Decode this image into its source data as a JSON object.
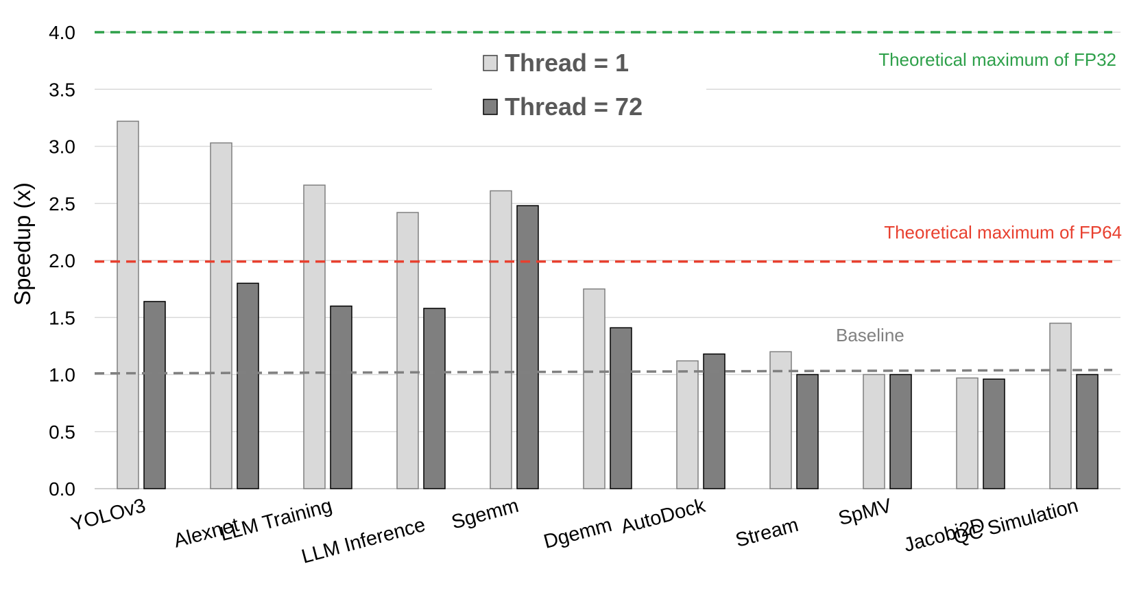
{
  "chart_data": {
    "type": "bar",
    "ylabel": "Speedup (x)",
    "ylim": [
      0,
      4.0
    ],
    "yticks": [
      "0.0",
      "0.5",
      "1.0",
      "1.5",
      "2.0",
      "2.5",
      "3.0",
      "3.5",
      "4.0"
    ],
    "grid": true,
    "legend_position": "top-center",
    "categories": [
      "YOLOv3",
      "Alexnet",
      "LLM Training",
      "LLM Inference",
      "Sgemm",
      "Dgemm",
      "AutoDock",
      "Stream",
      "SpMV",
      "Jacobi2D",
      "QC Simulation"
    ],
    "series": [
      {
        "name": "Thread = 1",
        "color": "#d9d9d9",
        "values": [
          3.22,
          3.03,
          2.66,
          2.42,
          2.61,
          1.75,
          1.12,
          1.2,
          1.0,
          0.97,
          1.45
        ]
      },
      {
        "name": "Thread = 72",
        "color": "#7f7f7f",
        "values": [
          1.64,
          1.8,
          1.6,
          1.58,
          2.48,
          1.41,
          1.18,
          1.0,
          1.0,
          0.96,
          1.0
        ]
      }
    ],
    "reference_lines": [
      {
        "label": "Theoretical maximum of FP32",
        "value": 4.0,
        "color": "#2ea04a"
      },
      {
        "label": "Theoretical maximum of FP64",
        "value": 1.99,
        "color": "#e8402f"
      },
      {
        "label": "Baseline",
        "value": 1.01,
        "color": "#808080"
      }
    ]
  }
}
